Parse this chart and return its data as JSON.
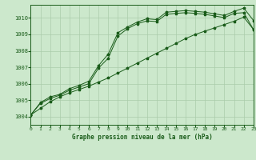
{
  "background_color": "#cce8cc",
  "grid_color": "#aaccaa",
  "line_color": "#1a5c1a",
  "title": "Graphe pression niveau de la mer (hPa)",
  "xlim": [
    0,
    23
  ],
  "ylim": [
    1003.5,
    1010.8
  ],
  "yticks": [
    1004,
    1005,
    1006,
    1007,
    1008,
    1009,
    1010
  ],
  "xticks": [
    0,
    1,
    2,
    3,
    4,
    5,
    6,
    7,
    8,
    9,
    10,
    11,
    12,
    13,
    14,
    15,
    16,
    17,
    18,
    19,
    20,
    21,
    22,
    23
  ],
  "series": [
    {
      "x": [
        0,
        1,
        2,
        3,
        4,
        5,
        6,
        7,
        8,
        9,
        10,
        11,
        12,
        13,
        14,
        15,
        16,
        17,
        18,
        19,
        20,
        21,
        22,
        23
      ],
      "y": [
        1004.1,
        1004.85,
        1005.2,
        1005.35,
        1005.7,
        1005.9,
        1006.15,
        1007.1,
        1007.8,
        1009.1,
        1009.45,
        1009.75,
        1009.95,
        1009.9,
        1010.35,
        1010.4,
        1010.45,
        1010.4,
        1010.35,
        1010.25,
        1010.15,
        1010.4,
        1010.6,
        1009.85
      ]
    },
    {
      "x": [
        0,
        1,
        2,
        3,
        4,
        5,
        6,
        7,
        8,
        9,
        10,
        11,
        12,
        13,
        14,
        15,
        16,
        17,
        18,
        19,
        20,
        21,
        22,
        23
      ],
      "y": [
        1004.1,
        1004.8,
        1005.1,
        1005.3,
        1005.6,
        1005.8,
        1006.0,
        1006.95,
        1007.55,
        1008.9,
        1009.35,
        1009.65,
        1009.82,
        1009.78,
        1010.22,
        1010.28,
        1010.32,
        1010.28,
        1010.22,
        1010.12,
        1010.02,
        1010.28,
        1010.32,
        1009.3
      ]
    },
    {
      "x": [
        0,
        1,
        2,
        3,
        4,
        5,
        6,
        7,
        8,
        9,
        10,
        11,
        12,
        13,
        14,
        15,
        16,
        17,
        18,
        19,
        20,
        21,
        22,
        23
      ],
      "y": [
        1004.1,
        1004.5,
        1004.9,
        1005.2,
        1005.45,
        1005.65,
        1005.85,
        1006.1,
        1006.35,
        1006.65,
        1006.95,
        1007.25,
        1007.55,
        1007.85,
        1008.15,
        1008.45,
        1008.75,
        1009.0,
        1009.2,
        1009.4,
        1009.6,
        1009.8,
        1010.05,
        1009.3
      ]
    }
  ]
}
